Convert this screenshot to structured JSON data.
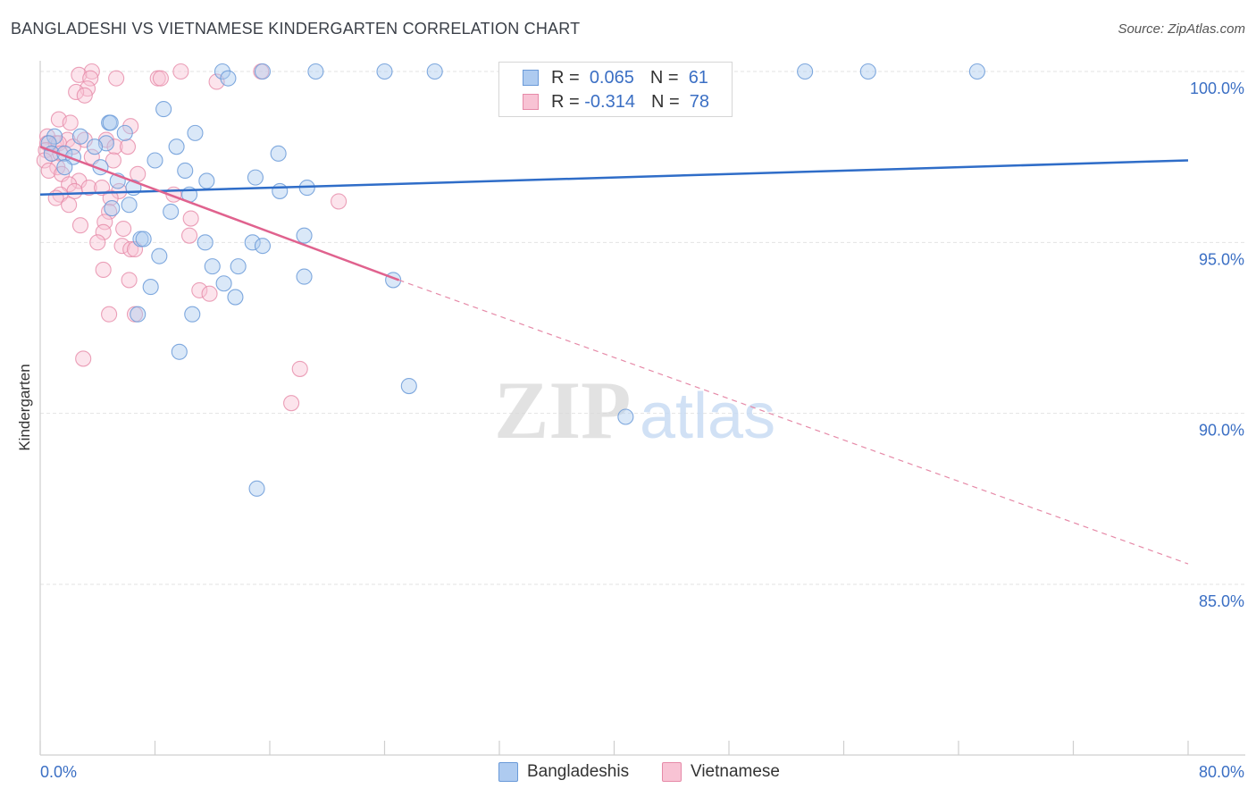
{
  "title": "BANGLADESHI VS VIETNAMESE KINDERGARTEN CORRELATION CHART",
  "source": "Source: ZipAtlas.com",
  "watermark": {
    "zip": "ZIP",
    "atlas": "atlas"
  },
  "legend": {
    "rows": [
      {
        "r_label": "R =",
        "r_value": "0.065",
        "n_label": "N =",
        "n_value": "61",
        "color": "#aecbf0",
        "border": "#6a9ad8"
      },
      {
        "r_label": "R =",
        "r_value": "-0.314",
        "n_label": "N =",
        "n_value": "78",
        "color": "#f8c3d4",
        "border": "#e68aa8"
      }
    ]
  },
  "bottom_legend": [
    {
      "label": "Bangladeshis",
      "color": "#aecbf0",
      "border": "#6a9ad8"
    },
    {
      "label": "Vietnamese",
      "color": "#f8c3d4",
      "border": "#e68aa8"
    }
  ],
  "chart_data": {
    "type": "scatter",
    "title": "BANGLADESHI VS VIETNAMESE KINDERGARTEN CORRELATION CHART",
    "xlabel": "",
    "ylabel": "Kindergarten",
    "xlim": [
      0,
      80
    ],
    "ylim": [
      80.5,
      100.6
    ],
    "x_tick_labels": [
      "0.0%",
      "80.0%"
    ],
    "y_ticks": [
      85,
      90,
      95,
      100
    ],
    "y_tick_labels": [
      "85.0%",
      "90.0%",
      "95.0%",
      "100.0%"
    ],
    "grid": true,
    "legend_position": "top-center",
    "series": [
      {
        "name": "Bangladeshis",
        "color": "#6a9ad8",
        "fill": "#aecbf0",
        "trend": {
          "x": [
            0,
            80
          ],
          "y": [
            96.4,
            97.4
          ],
          "style": "solid"
        },
        "points": [
          [
            12.7,
            100.0
          ],
          [
            15.5,
            100.0
          ],
          [
            19.2,
            100.0
          ],
          [
            24.0,
            100.0
          ],
          [
            27.5,
            100.0
          ],
          [
            53.3,
            100.0
          ],
          [
            57.7,
            100.0
          ],
          [
            65.3,
            100.0
          ],
          [
            13.1,
            99.8
          ],
          [
            8.6,
            98.9
          ],
          [
            4.8,
            98.5
          ],
          [
            4.9,
            98.5
          ],
          [
            5.9,
            98.2
          ],
          [
            10.8,
            98.2
          ],
          [
            1.0,
            98.1
          ],
          [
            2.8,
            98.1
          ],
          [
            4.6,
            97.9
          ],
          [
            0.6,
            97.9
          ],
          [
            3.8,
            97.8
          ],
          [
            9.5,
            97.8
          ],
          [
            16.6,
            97.6
          ],
          [
            0.8,
            97.6
          ],
          [
            1.7,
            97.6
          ],
          [
            2.3,
            97.5
          ],
          [
            8.0,
            97.4
          ],
          [
            4.2,
            97.2
          ],
          [
            1.7,
            97.2
          ],
          [
            10.1,
            97.1
          ],
          [
            15.0,
            96.9
          ],
          [
            11.6,
            96.8
          ],
          [
            5.4,
            96.8
          ],
          [
            6.5,
            96.6
          ],
          [
            16.7,
            96.5
          ],
          [
            18.6,
            96.6
          ],
          [
            10.4,
            96.4
          ],
          [
            6.2,
            96.1
          ],
          [
            5.0,
            96.0
          ],
          [
            9.1,
            95.9
          ],
          [
            18.4,
            95.2
          ],
          [
            7.0,
            95.1
          ],
          [
            7.2,
            95.1
          ],
          [
            11.5,
            95.0
          ],
          [
            14.8,
            95.0
          ],
          [
            15.5,
            94.9
          ],
          [
            8.3,
            94.6
          ],
          [
            12.0,
            94.3
          ],
          [
            13.8,
            94.3
          ],
          [
            18.4,
            94.0
          ],
          [
            24.6,
            93.9
          ],
          [
            12.8,
            93.8
          ],
          [
            7.7,
            93.7
          ],
          [
            13.6,
            93.4
          ],
          [
            6.8,
            92.9
          ],
          [
            10.6,
            92.9
          ],
          [
            9.7,
            91.8
          ],
          [
            25.7,
            90.8
          ],
          [
            40.8,
            89.9
          ],
          [
            15.1,
            87.8
          ]
        ]
      },
      {
        "name": "Vietnamese",
        "color": "#e68aa8",
        "fill": "#f8c3d4",
        "trend": {
          "x": [
            0,
            25
          ],
          "y": [
            97.8,
            93.9
          ],
          "dash_to": [
            80,
            85.6
          ],
          "style": "solid-then-dashed"
        },
        "points": [
          [
            3.6,
            100.0
          ],
          [
            9.8,
            100.0
          ],
          [
            15.4,
            100.0
          ],
          [
            2.7,
            99.9
          ],
          [
            3.5,
            99.8
          ],
          [
            5.3,
            99.8
          ],
          [
            8.2,
            99.8
          ],
          [
            8.4,
            99.8
          ],
          [
            12.3,
            99.7
          ],
          [
            3.3,
            99.5
          ],
          [
            2.5,
            99.4
          ],
          [
            3.1,
            99.3
          ],
          [
            1.3,
            98.6
          ],
          [
            2.1,
            98.5
          ],
          [
            6.3,
            98.4
          ],
          [
            0.5,
            98.1
          ],
          [
            1.9,
            98.0
          ],
          [
            3.1,
            98.0
          ],
          [
            4.6,
            98.0
          ],
          [
            0.5,
            97.9
          ],
          [
            1.1,
            97.9
          ],
          [
            1.3,
            97.9
          ],
          [
            2.3,
            97.8
          ],
          [
            5.2,
            97.8
          ],
          [
            6.1,
            97.8
          ],
          [
            0.4,
            97.7
          ],
          [
            0.8,
            97.6
          ],
          [
            1.4,
            97.6
          ],
          [
            3.6,
            97.5
          ],
          [
            0.3,
            97.4
          ],
          [
            5.1,
            97.4
          ],
          [
            1.2,
            97.2
          ],
          [
            0.6,
            97.1
          ],
          [
            1.5,
            97.0
          ],
          [
            6.8,
            97.0
          ],
          [
            2.7,
            96.8
          ],
          [
            2.0,
            96.7
          ],
          [
            3.4,
            96.6
          ],
          [
            4.3,
            96.6
          ],
          [
            2.4,
            96.5
          ],
          [
            5.5,
            96.5
          ],
          [
            1.4,
            96.4
          ],
          [
            9.3,
            96.4
          ],
          [
            1.1,
            96.3
          ],
          [
            4.9,
            96.3
          ],
          [
            20.8,
            96.2
          ],
          [
            2.0,
            96.1
          ],
          [
            4.8,
            95.9
          ],
          [
            10.5,
            95.7
          ],
          [
            4.5,
            95.6
          ],
          [
            2.8,
            95.5
          ],
          [
            5.8,
            95.4
          ],
          [
            4.4,
            95.3
          ],
          [
            10.4,
            95.2
          ],
          [
            4.0,
            95.0
          ],
          [
            5.7,
            94.9
          ],
          [
            6.3,
            94.8
          ],
          [
            6.6,
            94.8
          ],
          [
            4.4,
            94.2
          ],
          [
            6.2,
            93.9
          ],
          [
            11.1,
            93.6
          ],
          [
            11.8,
            93.5
          ],
          [
            4.8,
            92.9
          ],
          [
            6.6,
            92.9
          ],
          [
            3.0,
            91.6
          ],
          [
            18.1,
            91.3
          ],
          [
            17.5,
            90.3
          ]
        ]
      }
    ]
  }
}
